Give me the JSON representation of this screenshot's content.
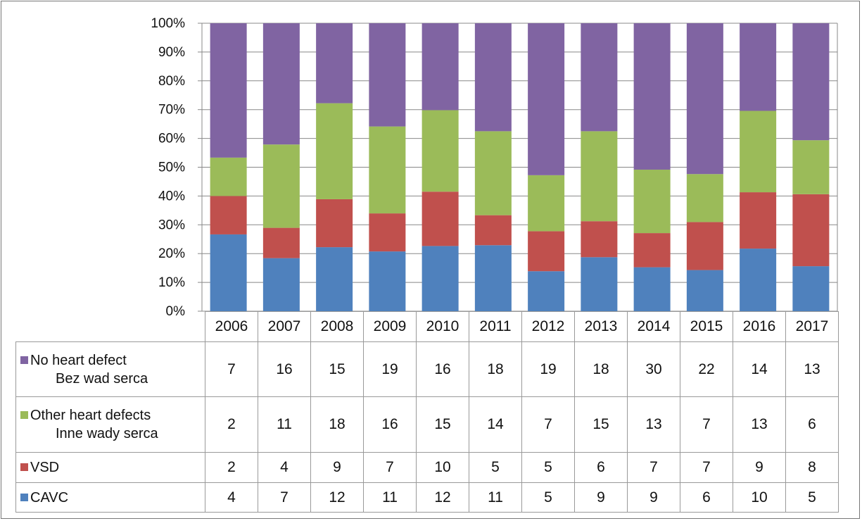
{
  "chart_data": {
    "type": "bar",
    "stacked": "percent",
    "categories": [
      "2006",
      "2007",
      "2008",
      "2009",
      "2010",
      "2011",
      "2012",
      "2013",
      "2014",
      "2015",
      "2016",
      "2017"
    ],
    "series": [
      {
        "name": "No heart defect",
        "name2": "Bez wad serca",
        "color": "#8064A2",
        "values": [
          7,
          16,
          15,
          19,
          16,
          18,
          19,
          18,
          30,
          22,
          14,
          13
        ]
      },
      {
        "name": "Other heart defects",
        "name2": "Inne wady serca",
        "color": "#9BBB59",
        "values": [
          2,
          11,
          18,
          16,
          15,
          14,
          7,
          15,
          13,
          7,
          13,
          6
        ]
      },
      {
        "name": "VSD",
        "name2": "",
        "color": "#C0504D",
        "values": [
          2,
          4,
          9,
          7,
          10,
          5,
          5,
          6,
          7,
          7,
          9,
          8
        ]
      },
      {
        "name": "CAVC",
        "name2": "",
        "color": "#4F81BD",
        "values": [
          4,
          7,
          12,
          11,
          12,
          11,
          5,
          9,
          9,
          6,
          10,
          5
        ]
      }
    ],
    "yticks": [
      "0%",
      "10%",
      "20%",
      "30%",
      "40%",
      "50%",
      "60%",
      "70%",
      "80%",
      "90%",
      "100%"
    ],
    "ylim": [
      0,
      100
    ],
    "grid": true,
    "legend": "data table below chart"
  }
}
